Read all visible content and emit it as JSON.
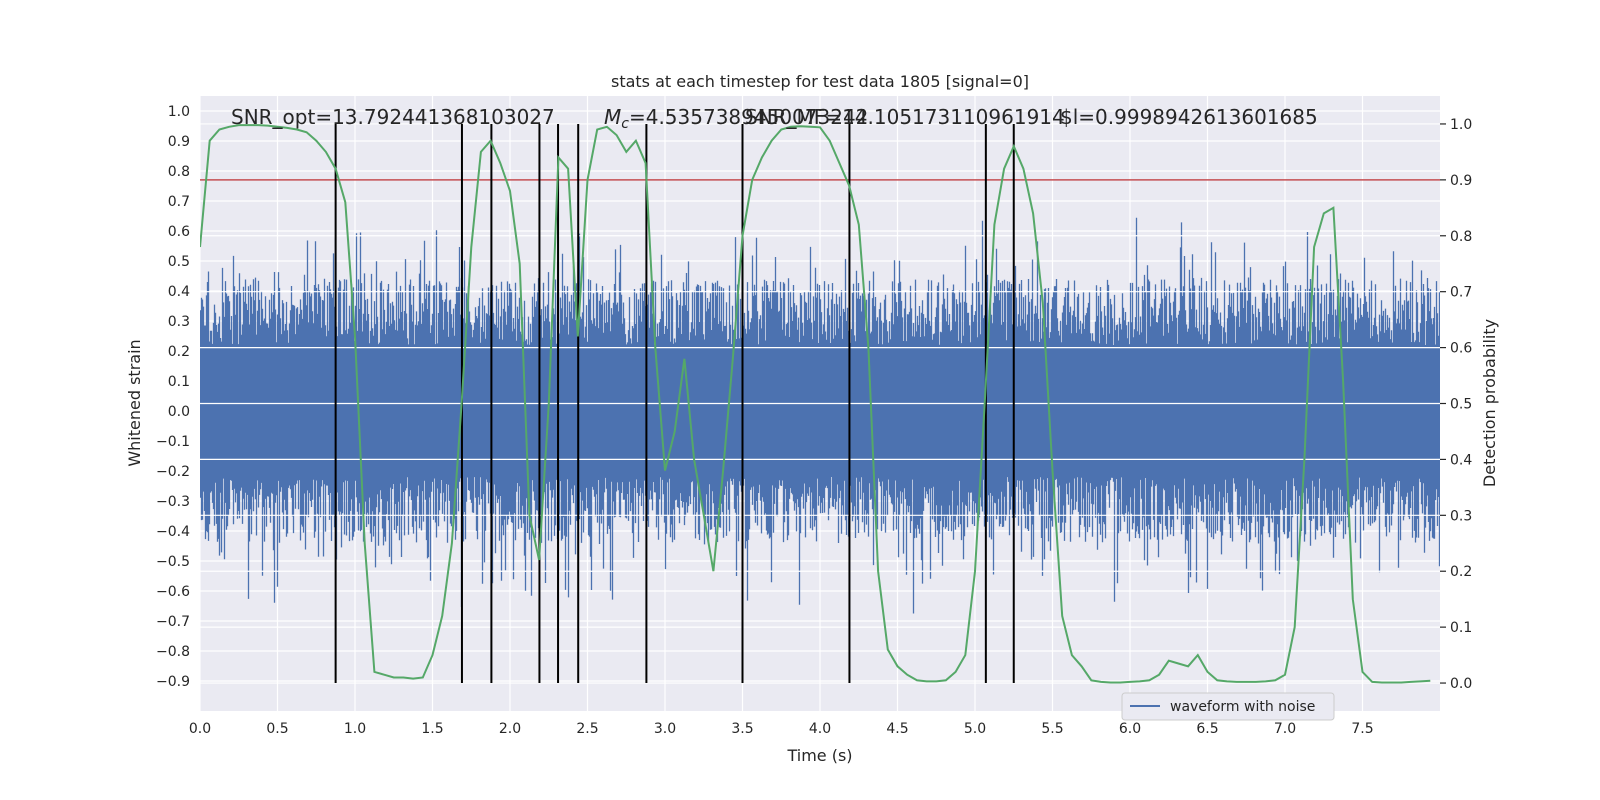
{
  "chart_data": {
    "type": "line",
    "title": "stats at each timestep for test data 1805 [signal=0]",
    "xlabel": "Time (s)",
    "ylabel_left": "Whitened strain",
    "ylabel_right": "Detection probability",
    "xlim": [
      0.0,
      8.0
    ],
    "ylim_left": [
      -1.0,
      1.05
    ],
    "ylim_right": [
      -0.05,
      1.05
    ],
    "x_ticks": [
      0.0,
      0.5,
      1.0,
      1.5,
      2.0,
      2.5,
      3.0,
      3.5,
      4.0,
      4.5,
      5.0,
      5.5,
      6.0,
      6.5,
      7.0,
      7.5
    ],
    "x_tick_labels": [
      "0.0",
      "0.5",
      "1.0",
      "1.5",
      "2.0",
      "2.5",
      "3.0",
      "3.5",
      "4.0",
      "4.5",
      "5.0",
      "5.5",
      "6.0",
      "6.5",
      "7.0",
      "7.5"
    ],
    "y_left_ticks": [
      -0.9,
      -0.8,
      -0.7,
      -0.6,
      -0.5,
      -0.4,
      -0.3,
      -0.2,
      -0.1,
      0.0,
      0.1,
      0.2,
      0.3,
      0.4,
      0.5,
      0.6,
      0.7,
      0.8,
      0.9,
      1.0
    ],
    "y_left_tick_labels": [
      "−0.9",
      "−0.8",
      "−0.7",
      "−0.6",
      "−0.5",
      "−0.4",
      "−0.3",
      "−0.2",
      "−0.1",
      "0.0",
      "0.1",
      "0.2",
      "0.3",
      "0.4",
      "0.5",
      "0.6",
      "0.7",
      "0.8",
      "0.9",
      "1.0"
    ],
    "y_right_ticks": [
      0.0,
      0.1,
      0.2,
      0.3,
      0.4,
      0.5,
      0.6,
      0.7,
      0.8,
      0.9,
      1.0
    ],
    "y_right_tick_labels": [
      "0.0",
      "0.1",
      "0.2",
      "0.3",
      "0.4",
      "0.5",
      "0.6",
      "0.7",
      "0.8",
      "0.9",
      "1.0"
    ],
    "legend": {
      "label": "waveform with noise",
      "placement": "lower-right"
    },
    "threshold_right": 0.9,
    "vertical_lines_x": [
      0.875,
      1.69,
      1.88,
      2.19,
      2.31,
      2.44,
      2.88,
      3.5,
      4.19,
      5.07,
      5.25
    ],
    "annotations": [
      {
        "text": "SNR_opt=13.792441368103027",
        "x": 0.2
      },
      {
        "text_prefix": "M",
        "text_sub": "c",
        "text_suffix": "=4.5357389450073242",
        "x": 2.6
      },
      {
        "text": "SNR_MF=14.105173110961914",
        "x": 3.5
      },
      {
        "text": "$l=0.9998942613601685",
        "x": 5.6
      }
    ],
    "series": [
      {
        "name": "detection probability",
        "color": "#55a868",
        "axis": "right",
        "x": [
          0.0,
          0.0625,
          0.125,
          0.1875,
          0.25,
          0.3125,
          0.375,
          0.4375,
          0.5,
          0.5625,
          0.625,
          0.6875,
          0.75,
          0.8125,
          0.875,
          0.9375,
          1.0,
          1.0625,
          1.125,
          1.1875,
          1.25,
          1.3125,
          1.375,
          1.4375,
          1.5,
          1.5625,
          1.625,
          1.6875,
          1.75,
          1.8125,
          1.875,
          1.9375,
          2.0,
          2.0625,
          2.125,
          2.1875,
          2.25,
          2.3125,
          2.375,
          2.4375,
          2.5,
          2.5625,
          2.625,
          2.6875,
          2.75,
          2.8125,
          2.875,
          2.9375,
          3.0,
          3.0625,
          3.125,
          3.1875,
          3.25,
          3.3125,
          3.375,
          3.4375,
          3.5,
          3.5625,
          3.625,
          3.6875,
          3.75,
          3.8125,
          3.875,
          3.9375,
          4.0,
          4.0625,
          4.125,
          4.1875,
          4.25,
          4.3125,
          4.375,
          4.4375,
          4.5,
          4.5625,
          4.625,
          4.6875,
          4.75,
          4.8125,
          4.875,
          4.9375,
          5.0,
          5.0625,
          5.125,
          5.1875,
          5.25,
          5.3125,
          5.375,
          5.4375,
          5.5,
          5.5625,
          5.625,
          5.6875,
          5.75,
          5.8125,
          5.875,
          5.9375,
          6.0,
          6.0625,
          6.125,
          6.1875,
          6.25,
          6.3125,
          6.375,
          6.4375,
          6.5,
          6.5625,
          6.625,
          6.6875,
          6.75,
          6.8125,
          6.875,
          6.9375,
          7.0,
          7.0625,
          7.125,
          7.1875,
          7.25,
          7.3125,
          7.375,
          7.4375,
          7.5,
          7.5625,
          7.625,
          7.6875,
          7.75,
          7.8125,
          7.875,
          7.9375
        ],
        "values": [
          0.78,
          0.97,
          0.99,
          0.995,
          0.998,
          0.998,
          0.998,
          0.997,
          0.995,
          0.993,
          0.99,
          0.985,
          0.97,
          0.95,
          0.92,
          0.86,
          0.62,
          0.25,
          0.02,
          0.015,
          0.01,
          0.01,
          0.008,
          0.01,
          0.05,
          0.12,
          0.25,
          0.5,
          0.78,
          0.95,
          0.97,
          0.93,
          0.88,
          0.75,
          0.3,
          0.22,
          0.5,
          0.94,
          0.92,
          0.62,
          0.9,
          0.99,
          0.995,
          0.98,
          0.95,
          0.97,
          0.93,
          0.6,
          0.38,
          0.45,
          0.58,
          0.4,
          0.3,
          0.2,
          0.38,
          0.58,
          0.8,
          0.9,
          0.94,
          0.97,
          0.99,
          0.995,
          0.996,
          0.995,
          0.994,
          0.97,
          0.93,
          0.89,
          0.82,
          0.6,
          0.2,
          0.06,
          0.03,
          0.015,
          0.005,
          0.003,
          0.003,
          0.005,
          0.02,
          0.05,
          0.2,
          0.5,
          0.82,
          0.92,
          0.96,
          0.92,
          0.84,
          0.68,
          0.38,
          0.12,
          0.05,
          0.03,
          0.005,
          0.002,
          0.001,
          0.001,
          0.002,
          0.003,
          0.005,
          0.015,
          0.04,
          0.035,
          0.03,
          0.05,
          0.02,
          0.005,
          0.003,
          0.002,
          0.002,
          0.002,
          0.003,
          0.005,
          0.015,
          0.1,
          0.4,
          0.78,
          0.84,
          0.85,
          0.54,
          0.15,
          0.02,
          0.002,
          0.001,
          0.001,
          0.001,
          0.002,
          0.003,
          0.004
        ]
      }
    ]
  }
}
